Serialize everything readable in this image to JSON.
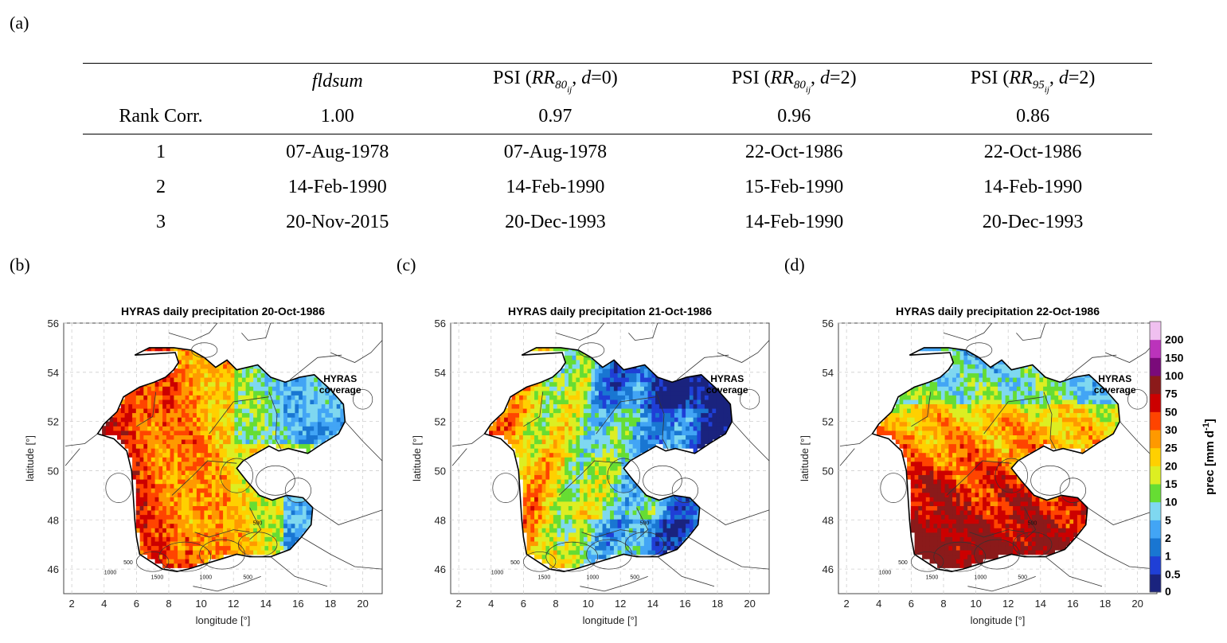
{
  "panel_labels": {
    "a": "(a)",
    "b": "(b)",
    "c": "(c)",
    "d": "(d)"
  },
  "table": {
    "headers": [
      "",
      "fldsum",
      "PSI (RR80ij, d=0)",
      "PSI (RR80ij, d=2)",
      "PSI (RR95ij, d=2)"
    ],
    "header_parts": {
      "psi1": {
        "pre": "PSI (",
        "base": "RR",
        "sub": "80",
        "sub2": "ij",
        "post": ", ",
        "dvar": "d",
        "dval": "=0)"
      },
      "psi2": {
        "pre": "PSI (",
        "base": "RR",
        "sub": "80",
        "sub2": "ij",
        "post": ", ",
        "dvar": "d",
        "dval": "=2)"
      },
      "psi3": {
        "pre": "PSI (",
        "base": "RR",
        "sub": "95",
        "sub2": "ij",
        "post": ", ",
        "dvar": "d",
        "dval": "=2)"
      }
    },
    "rank_corr": {
      "label": "Rank Corr.",
      "values": [
        "1.00",
        "0.97",
        "0.96",
        "0.86"
      ]
    },
    "rows": [
      {
        "rank": "1",
        "values": [
          "07-Aug-1978",
          "07-Aug-1978",
          "22-Oct-1986",
          "22-Oct-1986"
        ]
      },
      {
        "rank": "2",
        "values": [
          "14-Feb-1990",
          "14-Feb-1990",
          "15-Feb-1990",
          "14-Feb-1990"
        ]
      },
      {
        "rank": "3",
        "values": [
          "20-Nov-2015",
          "20-Dec-1993",
          "14-Feb-1990",
          "20-Dec-1993"
        ]
      }
    ]
  },
  "maps": [
    {
      "title": "HYRAS daily precipitation 20-Oct-1986",
      "coverage_label": "HYRAS\ncoverage"
    },
    {
      "title": "HYRAS daily precipitation 21-Oct-1986",
      "coverage_label": "HYRAS\ncoverage"
    },
    {
      "title": "HYRAS daily precipitation 22-Oct-1986",
      "coverage_label": "HYRAS\ncoverage"
    }
  ],
  "map_axes": {
    "xlabel": "longitude [°]",
    "ylabel": "latitude [°]",
    "xticks": [
      "2",
      "4",
      "6",
      "8",
      "10",
      "12",
      "14",
      "16",
      "18",
      "20"
    ],
    "yticks": [
      "46",
      "48",
      "50",
      "52",
      "54",
      "56"
    ],
    "xlim": [
      1.5,
      21.2
    ],
    "ylim": [
      45,
      56
    ]
  },
  "colorbar": {
    "label": "prec [mm d",
    "label_sup": "-1",
    "label_end": "]",
    "ticks": [
      "0",
      "0.5",
      "1",
      "2",
      "5",
      "10",
      "15",
      "20",
      "25",
      "30",
      "50",
      "75",
      "100",
      "150",
      "200"
    ],
    "colors": [
      "#1a237e",
      "#1f3fd6",
      "#1976d2",
      "#42a5f5",
      "#7fd8f0",
      "#66dd33",
      "#ddee22",
      "#ffd000",
      "#ff9900",
      "#ff4400",
      "#cc0000",
      "#8b1a1a",
      "#7a0a7a",
      "#bb33bb",
      "#f0c0f0"
    ]
  },
  "contour_labels": [
    "500",
    "1000",
    "1500"
  ]
}
